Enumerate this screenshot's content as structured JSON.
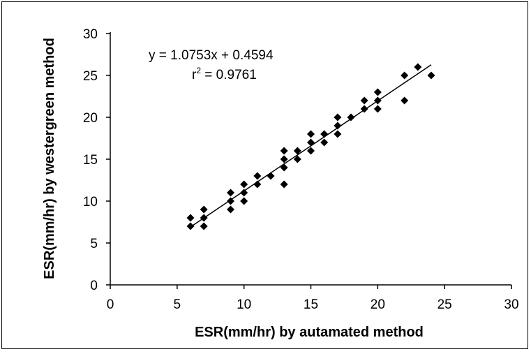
{
  "chart_data": {
    "type": "scatter",
    "xlabel": "ESR(mm/hr) by autamated method",
    "ylabel": "ESR(mm/hr)  by westergreen method",
    "xlim": [
      0,
      30
    ],
    "ylim": [
      0,
      30
    ],
    "xticks": [
      "0",
      "5",
      "10",
      "15",
      "20",
      "25",
      "30"
    ],
    "yticks": [
      "0",
      "5",
      "10",
      "15",
      "20",
      "25",
      "30"
    ],
    "annotations": {
      "equation": "y = 1.0753x + 0.4594",
      "r2_symbol": "r",
      "r2_exp": "2",
      "r2_value": " = 0.9761"
    },
    "trendline": {
      "slope": 1.0753,
      "intercept": 0.4594,
      "x_range": [
        6,
        24
      ]
    },
    "grid": false,
    "legend": "none",
    "colors": {
      "marker": "#000000",
      "line": "#000000"
    },
    "points": [
      [
        6,
        7
      ],
      [
        6,
        8
      ],
      [
        7,
        7
      ],
      [
        7,
        8
      ],
      [
        7,
        9
      ],
      [
        9,
        9
      ],
      [
        9,
        10
      ],
      [
        9,
        11
      ],
      [
        10,
        10
      ],
      [
        10,
        11
      ],
      [
        10,
        12
      ],
      [
        11,
        12
      ],
      [
        11,
        13
      ],
      [
        12,
        13
      ],
      [
        13,
        12
      ],
      [
        13,
        14
      ],
      [
        13,
        15
      ],
      [
        13,
        16
      ],
      [
        14,
        15
      ],
      [
        14,
        16
      ],
      [
        15,
        16
      ],
      [
        15,
        17
      ],
      [
        15,
        18
      ],
      [
        16,
        17
      ],
      [
        16,
        18
      ],
      [
        17,
        18
      ],
      [
        17,
        19
      ],
      [
        17,
        20
      ],
      [
        18,
        20
      ],
      [
        19,
        21
      ],
      [
        19,
        22
      ],
      [
        20,
        21
      ],
      [
        20,
        22
      ],
      [
        20,
        23
      ],
      [
        22,
        22
      ],
      [
        22,
        25
      ],
      [
        23,
        26
      ],
      [
        24,
        25
      ]
    ]
  }
}
